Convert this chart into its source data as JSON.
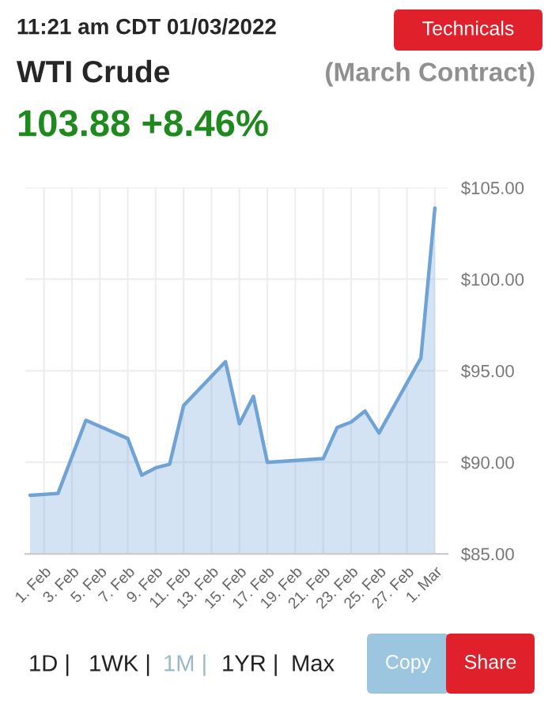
{
  "chart_data": {
    "type": "area",
    "title": "WTI Crude",
    "subtitle": "(March Contract)",
    "annotations": [
      "11:21 am CDT 01/03/2022",
      "103.88 +8.46%",
      "Technicals",
      "1D |",
      "1WK |",
      "1M |",
      "1YR |",
      "Max",
      "Copy",
      "Share"
    ],
    "x": [
      "2022-01-31",
      "2022-02-02",
      "2022-02-04",
      "2022-02-07",
      "2022-02-08",
      "2022-02-09",
      "2022-02-10",
      "2022-02-11",
      "2022-02-14",
      "2022-02-15",
      "2022-02-16",
      "2022-02-17",
      "2022-02-21",
      "2022-02-22",
      "2022-02-23",
      "2022-02-24",
      "2022-02-25",
      "2022-02-28",
      "2022-03-01"
    ],
    "series": [
      {
        "color": "#6fa3d6",
        "values": [
          88.2,
          88.3,
          92.3,
          91.3,
          89.3,
          89.7,
          89.9,
          93.1,
          95.5,
          92.1,
          93.6,
          90.0,
          90.2,
          91.9,
          92.2,
          92.8,
          91.6,
          95.7,
          103.88
        ]
      }
    ],
    "xlim": [
      "2022-01-30T16:00",
      "2022-03-01T22:00"
    ],
    "xticks": [
      {
        "value": "2022-02-01",
        "label": "1. Feb"
      },
      {
        "value": "2022-02-03",
        "label": "3. Feb"
      },
      {
        "value": "2022-02-05",
        "label": "5. Feb"
      },
      {
        "value": "2022-02-07",
        "label": "7. Feb"
      },
      {
        "value": "2022-02-09",
        "label": "9. Feb"
      },
      {
        "value": "2022-02-11",
        "label": "11. Feb"
      },
      {
        "value": "2022-02-13",
        "label": "13. Feb"
      },
      {
        "value": "2022-02-15",
        "label": "15. Feb"
      },
      {
        "value": "2022-02-17",
        "label": "17. Feb"
      },
      {
        "value": "2022-02-19",
        "label": "19. Feb"
      },
      {
        "value": "2022-02-21",
        "label": "21. Feb"
      },
      {
        "value": "2022-02-23",
        "label": "23. Feb"
      },
      {
        "value": "2022-02-25",
        "label": "25. Feb"
      },
      {
        "value": "2022-02-27",
        "label": "27. Feb"
      },
      {
        "value": "2022-03-01",
        "label": "1. Mar"
      }
    ],
    "ylim": [
      85,
      105
    ],
    "yticks": [
      {
        "value": 85,
        "label": "$85.00"
      },
      {
        "value": 90,
        "label": "$90.00"
      },
      {
        "value": 95,
        "label": "$95.00"
      },
      {
        "value": 100,
        "label": "$100.00"
      },
      {
        "value": 105,
        "label": "$105.00"
      }
    ],
    "grid": true,
    "legend": false
  }
}
